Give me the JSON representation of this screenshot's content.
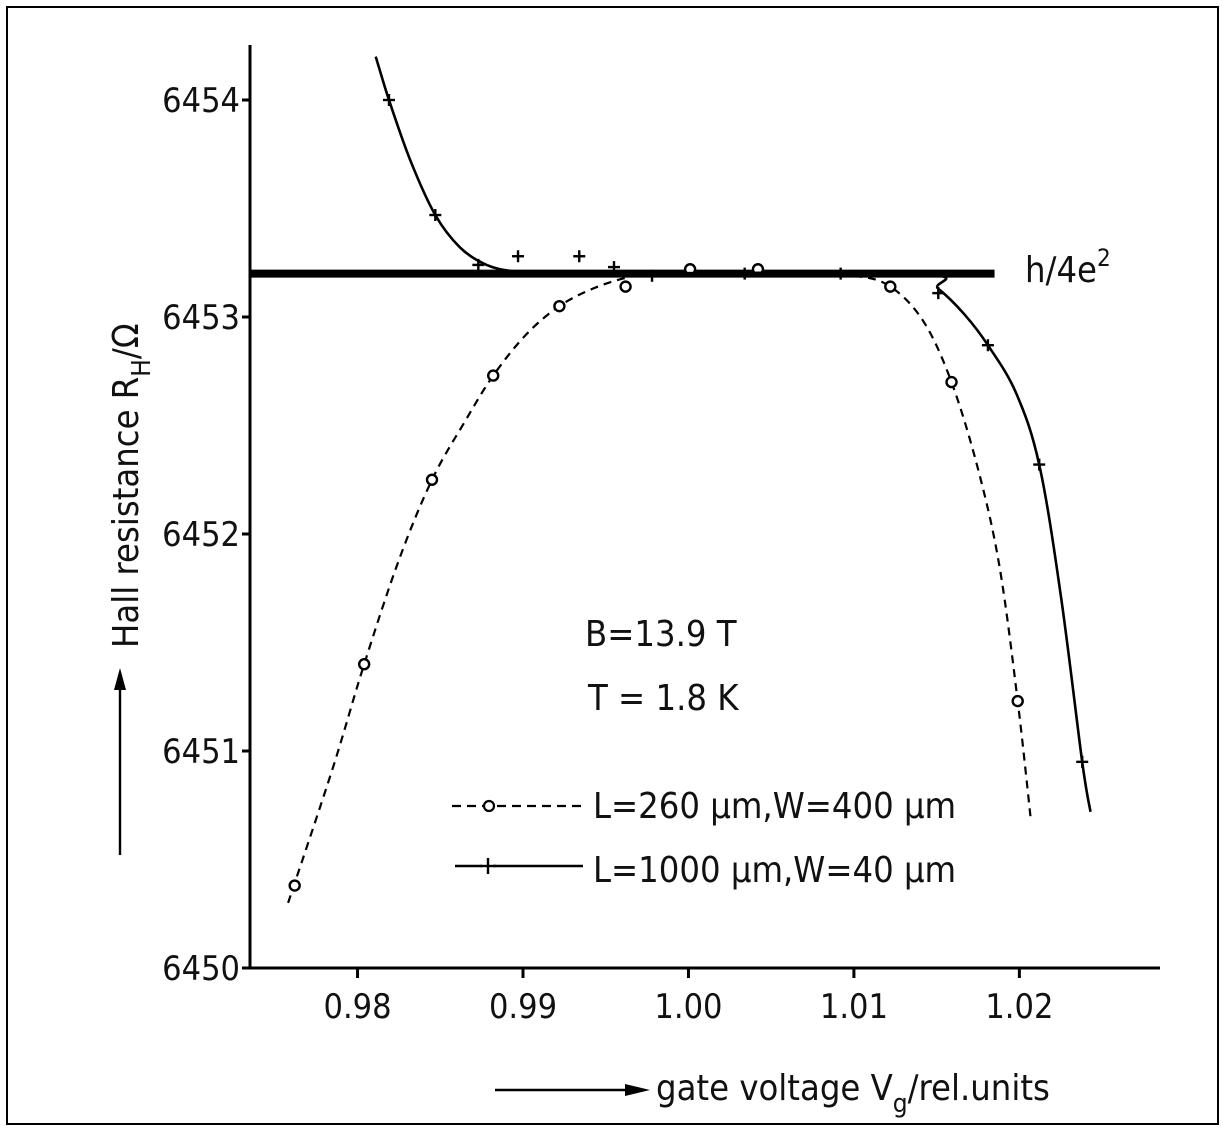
{
  "chart_data": {
    "type": "line",
    "xlabel": "gate voltage V",
    "xlabel_sub": "g",
    "xlabel_unit": "/rel.units",
    "ylabel": "Hall resistance R",
    "ylabel_sub": "H",
    "ylabel_unit": "/Ω",
    "xlim": [
      0.9735,
      1.0285
    ],
    "ylim": [
      6450,
      6454.25
    ],
    "x_ticks": [
      0.98,
      0.99,
      1.0,
      1.01,
      1.02
    ],
    "x_tick_labels": [
      "0.98",
      "0.99",
      "1.00",
      "1.01",
      "1.02"
    ],
    "y_ticks": [
      6450,
      6451,
      6452,
      6453,
      6454
    ],
    "y_tick_labels": [
      "6450",
      "6451",
      "6452",
      "6453",
      "6454"
    ],
    "reference_line": {
      "label": "h/4e²",
      "label_main": "h/4e",
      "label_sup": "2",
      "y": 6453.2,
      "x_range": [
        0.9735,
        1.0185
      ]
    },
    "annotations": [
      "B=13.9 T",
      "T = 1.8 K"
    ],
    "legend_position": "bottom-right",
    "grid": false,
    "series": [
      {
        "name": "L=260 μm,W=400 μm",
        "marker": "circle",
        "style": "dashed",
        "points": [
          [
            0.9762,
            6450.38
          ],
          [
            0.9804,
            6451.4
          ],
          [
            0.9845,
            6452.25
          ],
          [
            0.9882,
            6452.73
          ],
          [
            0.9922,
            6453.05
          ],
          [
            0.9962,
            6453.14
          ],
          [
            1.0001,
            6453.22
          ],
          [
            1.0042,
            6453.22
          ],
          [
            1.0122,
            6453.14
          ],
          [
            1.0159,
            6452.7
          ],
          [
            1.0199,
            6451.23
          ]
        ],
        "curve": [
          [
            0.9758,
            6450.3
          ],
          [
            0.9785,
            6450.92
          ],
          [
            0.9804,
            6451.4
          ],
          [
            0.9825,
            6451.88
          ],
          [
            0.9845,
            6452.25
          ],
          [
            0.9865,
            6452.52
          ],
          [
            0.9882,
            6452.73
          ],
          [
            0.9902,
            6452.92
          ],
          [
            0.9922,
            6453.05
          ],
          [
            0.9942,
            6453.13
          ],
          [
            0.9962,
            6453.18
          ],
          [
            0.998,
            6453.2
          ],
          [
            1.006,
            6453.2
          ],
          [
            1.01,
            6453.19
          ],
          [
            1.0122,
            6453.14
          ],
          [
            1.0142,
            6452.98
          ],
          [
            1.0159,
            6452.7
          ],
          [
            1.0175,
            6452.3
          ],
          [
            1.0188,
            6451.85
          ],
          [
            1.0199,
            6451.23
          ],
          [
            1.0207,
            6450.68
          ]
        ]
      },
      {
        "name": "L=1000 μm,W=40 μm",
        "marker": "plus",
        "style": "solid",
        "points": [
          [
            0.9819,
            6454.0
          ],
          [
            0.9847,
            6453.47
          ],
          [
            0.9873,
            6453.24
          ],
          [
            0.9897,
            6453.28
          ],
          [
            0.9934,
            6453.28
          ],
          [
            0.9955,
            6453.23
          ],
          [
            0.9978,
            6453.19
          ],
          [
            1.0034,
            6453.2
          ],
          [
            1.0092,
            6453.2
          ],
          [
            1.0151,
            6453.11
          ],
          [
            1.0181,
            6452.87
          ],
          [
            1.0212,
            6452.32
          ],
          [
            1.0238,
            6450.95
          ]
        ],
        "curve": [
          [
            0.9811,
            6454.2
          ],
          [
            0.9819,
            6454.0
          ],
          [
            0.9832,
            6453.72
          ],
          [
            0.9847,
            6453.47
          ],
          [
            0.9862,
            6453.32
          ],
          [
            0.9878,
            6453.24
          ],
          [
            0.9895,
            6453.21
          ],
          [
            0.992,
            6453.2
          ],
          [
            1.0135,
            6453.2
          ],
          [
            1.0151,
            6453.13
          ],
          [
            1.0167,
            6453.01
          ],
          [
            1.0181,
            6452.87
          ],
          [
            1.0198,
            6452.65
          ],
          [
            1.0212,
            6452.32
          ],
          [
            1.0225,
            6451.72
          ],
          [
            1.0238,
            6450.95
          ],
          [
            1.0243,
            6450.72
          ]
        ]
      }
    ]
  }
}
